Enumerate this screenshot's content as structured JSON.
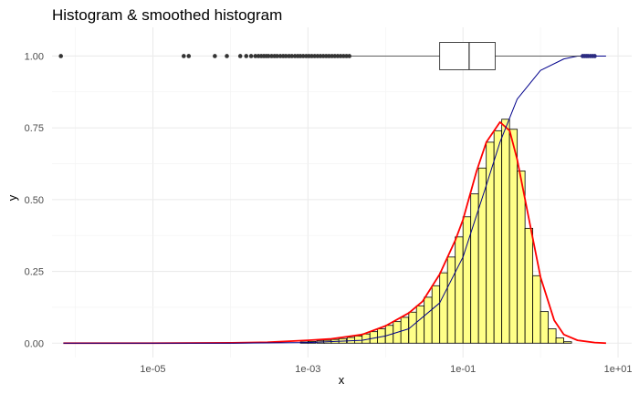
{
  "chart_data": {
    "type": "bar",
    "title": "Histogram & smoothed histogram",
    "xlabel": "x",
    "ylabel": "y",
    "x_scale": "log10",
    "xlim": [
      5e-07,
      15
    ],
    "ylim": [
      -0.05,
      1.1
    ],
    "x_ticks": [
      1e-05,
      0.001,
      0.1,
      10
    ],
    "x_tick_labels": [
      "1e-05",
      "1e-03",
      "1e-01",
      "1e+01"
    ],
    "y_ticks": [
      0,
      0.25,
      0.5,
      0.75,
      1
    ],
    "y_tick_labels": [
      "0.00",
      "0.25",
      "0.50",
      "0.75",
      "1.00"
    ],
    "grid": true,
    "histogram": {
      "fill": "#ffff88",
      "bin_width_log10": 0.1,
      "bins": [
        {
          "x_start": 0.0008,
          "density": 0.004
        },
        {
          "x_start": 0.001,
          "density": 0.006
        },
        {
          "x_start": 0.0013,
          "density": 0.008
        },
        {
          "x_start": 0.0016,
          "density": 0.01
        },
        {
          "x_start": 0.002,
          "density": 0.013
        },
        {
          "x_start": 0.0025,
          "density": 0.016
        },
        {
          "x_start": 0.0032,
          "density": 0.02
        },
        {
          "x_start": 0.004,
          "density": 0.025
        },
        {
          "x_start": 0.005,
          "density": 0.032
        },
        {
          "x_start": 0.0063,
          "density": 0.04
        },
        {
          "x_start": 0.0079,
          "density": 0.05
        },
        {
          "x_start": 0.01,
          "density": 0.062
        },
        {
          "x_start": 0.0126,
          "density": 0.075
        },
        {
          "x_start": 0.0158,
          "density": 0.09
        },
        {
          "x_start": 0.02,
          "density": 0.108
        },
        {
          "x_start": 0.0251,
          "density": 0.13
        },
        {
          "x_start": 0.0316,
          "density": 0.16
        },
        {
          "x_start": 0.0398,
          "density": 0.2
        },
        {
          "x_start": 0.0501,
          "density": 0.245
        },
        {
          "x_start": 0.0631,
          "density": 0.3
        },
        {
          "x_start": 0.0794,
          "density": 0.37
        },
        {
          "x_start": 0.1,
          "density": 0.44
        },
        {
          "x_start": 0.1259,
          "density": 0.52
        },
        {
          "x_start": 0.1585,
          "density": 0.61
        },
        {
          "x_start": 0.1995,
          "density": 0.7
        },
        {
          "x_start": 0.2512,
          "density": 0.74
        },
        {
          "x_start": 0.3162,
          "density": 0.78
        },
        {
          "x_start": 0.3981,
          "density": 0.745
        },
        {
          "x_start": 0.5012,
          "density": 0.6
        },
        {
          "x_start": 0.631,
          "density": 0.4
        },
        {
          "x_start": 0.7943,
          "density": 0.235
        },
        {
          "x_start": 1.0,
          "density": 0.11
        },
        {
          "x_start": 1.2589,
          "density": 0.05
        },
        {
          "x_start": 1.5849,
          "density": 0.018
        },
        {
          "x_start": 1.9953,
          "density": 0.005
        }
      ]
    },
    "series": [
      {
        "kind": "smoothed_density",
        "color": "#ff0000",
        "points": [
          [
            7e-07,
            0.0
          ],
          [
            1e-05,
            0.0
          ],
          [
            0.0001,
            0.001
          ],
          [
            0.0003,
            0.003
          ],
          [
            0.001,
            0.01
          ],
          [
            0.002,
            0.015
          ],
          [
            0.005,
            0.03
          ],
          [
            0.01,
            0.06
          ],
          [
            0.02,
            0.105
          ],
          [
            0.03,
            0.145
          ],
          [
            0.05,
            0.24
          ],
          [
            0.08,
            0.36
          ],
          [
            0.1,
            0.43
          ],
          [
            0.15,
            0.6
          ],
          [
            0.2,
            0.7
          ],
          [
            0.3,
            0.77
          ],
          [
            0.4,
            0.74
          ],
          [
            0.5,
            0.64
          ],
          [
            0.7,
            0.44
          ],
          [
            1.0,
            0.23
          ],
          [
            1.5,
            0.08
          ],
          [
            2.0,
            0.03
          ],
          [
            3.0,
            0.01
          ],
          [
            5.0,
            0.002
          ],
          [
            7.0,
            0.0
          ]
        ]
      },
      {
        "kind": "ecdf",
        "color": "#00008b",
        "points": [
          [
            7e-07,
            0.0
          ],
          [
            0.0001,
            0.0
          ],
          [
            0.001,
            0.002
          ],
          [
            0.005,
            0.01
          ],
          [
            0.01,
            0.025
          ],
          [
            0.02,
            0.05
          ],
          [
            0.05,
            0.14
          ],
          [
            0.1,
            0.3
          ],
          [
            0.2,
            0.55
          ],
          [
            0.3,
            0.7
          ],
          [
            0.5,
            0.85
          ],
          [
            1.0,
            0.95
          ],
          [
            2.0,
            0.99
          ],
          [
            3.0,
            1.0
          ],
          [
            7.0,
            1.0
          ]
        ]
      }
    ],
    "boxplot": {
      "y": 1.0,
      "q1": 0.05,
      "median": 0.12,
      "q3": 0.26,
      "whisker_low": 0.0035,
      "whisker_high": 3.3,
      "outliers_low": [
        6.5e-07,
        2.5e-05,
        2.9e-05,
        6.3e-05,
        9e-05,
        0.000134,
        0.00016,
        0.000185,
        0.00021,
        0.00023,
        0.00025,
        0.00027,
        0.00029,
        0.00031,
        0.00034,
        0.00037,
        0.0004,
        0.00044,
        0.00048,
        0.00052,
        0.00057,
        0.00062,
        0.00068,
        0.00074,
        0.0008,
        0.00087,
        0.00095,
        0.00103,
        0.00112,
        0.00122,
        0.00133,
        0.00145,
        0.00158,
        0.00172,
        0.00187,
        0.00204,
        0.00222,
        0.00242,
        0.00264,
        0.00288,
        0.00314,
        0.00342
      ],
      "outliers_high": [
        3.5,
        3.7,
        3.9,
        4.1,
        4.4,
        4.7,
        5.0
      ]
    }
  }
}
